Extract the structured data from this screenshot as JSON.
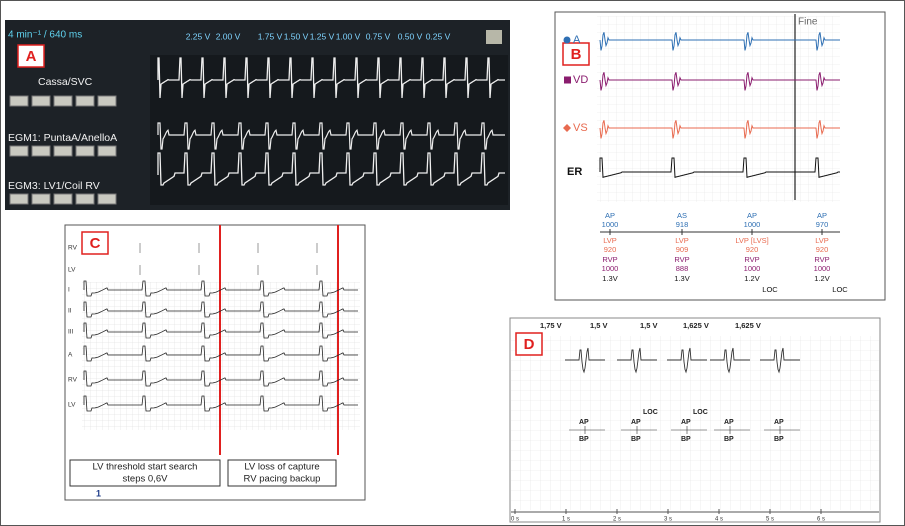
{
  "panels": {
    "A": {
      "label": "A",
      "header": "4 min⁻¹ / 640 ms",
      "voltages": [
        "2.25 V",
        "2.00 V",
        "1.75 V",
        "1.50 V",
        "1.25 V",
        "1.00 V",
        "0.75 V",
        "0.50 V",
        "0.25 V"
      ],
      "channels": [
        "Cassa/SVC",
        "EGM1: PuntaA/AnelloA",
        "EGM3: LV1/Coil RV"
      ]
    },
    "B": {
      "label": "B",
      "marker": "Fine",
      "channels": [
        "A",
        "VD",
        "VS",
        "ER"
      ],
      "beats": [
        {
          "lines": [
            "AP",
            "1000",
            "LVP",
            "920",
            "RVP",
            "1000",
            "1.3V"
          ]
        },
        {
          "lines": [
            "AS",
            "918",
            "LVP",
            "909",
            "RVP",
            "888",
            "1.3V"
          ]
        },
        {
          "lines": [
            "AP",
            "1000",
            "LVP [LVS]",
            "920",
            "RVP",
            "1000",
            "1.2V",
            "LOC"
          ]
        },
        {
          "lines": [
            "AP",
            "970",
            "LVP",
            "920",
            "RVP",
            "1000",
            "1.2V",
            "LOC"
          ]
        }
      ]
    },
    "C": {
      "label": "C",
      "channels": [
        "RV",
        "LV",
        "I",
        "II",
        "III",
        "A",
        "RV",
        "LV"
      ],
      "notes": [
        [
          "LV threshold start search",
          "steps 0,6V"
        ],
        [
          "LV loss of capture",
          "RV pacing backup"
        ]
      ],
      "page": "1"
    },
    "D": {
      "label": "D",
      "voltages": [
        "1,75 V",
        "1,5 V",
        "1,5 V",
        "1,625 V",
        "1,625 V"
      ],
      "beats": [
        {
          "top": "AP",
          "bottom": "BP"
        },
        {
          "loc": "LOC",
          "top": "AP",
          "bottom": "BP"
        },
        {
          "loc": "LOC",
          "top": "AP",
          "bottom": "BP"
        },
        {
          "top": "AP",
          "bottom": "BP"
        },
        {
          "top": "AP",
          "bottom": "BP"
        }
      ],
      "time": [
        "0 s",
        "1 s",
        "2 s",
        "3 s",
        "4 s",
        "5 s",
        "6 s"
      ]
    }
  }
}
